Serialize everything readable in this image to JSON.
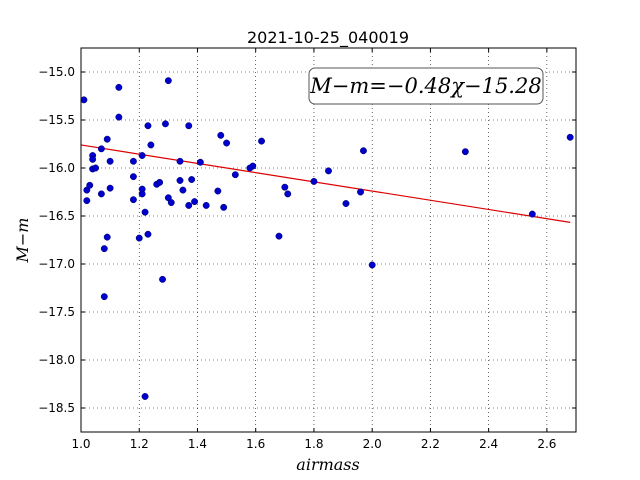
{
  "chart_data": {
    "type": "scatter",
    "title": "2021-10-25_040019",
    "xlabel": "airmass",
    "ylabel": "M−m",
    "xlim": [
      1.0,
      2.7
    ],
    "ylim": [
      -18.75,
      -14.75
    ],
    "x_ticks": [
      1.0,
      1.2,
      1.4,
      1.6,
      1.8,
      2.0,
      2.2,
      2.4,
      2.6
    ],
    "x_tick_labels": [
      "1.0",
      "1.2",
      "1.4",
      "1.6",
      "1.8",
      "2.0",
      "2.2",
      "2.4",
      "2.6"
    ],
    "y_ticks": [
      -15.0,
      -15.5,
      -16.0,
      -16.5,
      -17.0,
      -17.5,
      -18.0,
      -18.5
    ],
    "y_tick_labels": [
      "−15.0",
      "−15.5",
      "−16.0",
      "−16.5",
      "−17.0",
      "−17.5",
      "−18.0",
      "−18.5"
    ],
    "grid": true,
    "marker_color": "#0000cc",
    "fit_color": "#dd0000",
    "annotation": "M−m=−0.48χ−15.28",
    "fit": {
      "slope": -0.48,
      "intercept": -15.28,
      "x_range": [
        1.0,
        2.68
      ]
    },
    "points": [
      [
        1.01,
        -15.29
      ],
      [
        1.02,
        -16.34
      ],
      [
        1.02,
        -16.23
      ],
      [
        1.03,
        -16.18
      ],
      [
        1.04,
        -15.87
      ],
      [
        1.04,
        -15.91
      ],
      [
        1.04,
        -16.01
      ],
      [
        1.05,
        -16.0
      ],
      [
        1.07,
        -15.8
      ],
      [
        1.07,
        -16.27
      ],
      [
        1.08,
        -16.84
      ],
      [
        1.09,
        -15.7
      ],
      [
        1.09,
        -16.72
      ],
      [
        1.1,
        -16.21
      ],
      [
        1.1,
        -15.93
      ],
      [
        1.08,
        -17.34
      ],
      [
        1.13,
        -15.16
      ],
      [
        1.13,
        -15.47
      ],
      [
        1.18,
        -15.93
      ],
      [
        1.18,
        -16.09
      ],
      [
        1.18,
        -16.33
      ],
      [
        1.2,
        -16.73
      ],
      [
        1.21,
        -16.22
      ],
      [
        1.21,
        -16.27
      ],
      [
        1.21,
        -15.87
      ],
      [
        1.22,
        -16.46
      ],
      [
        1.23,
        -15.56
      ],
      [
        1.23,
        -16.69
      ],
      [
        1.24,
        -15.76
      ],
      [
        1.22,
        -18.38
      ],
      [
        1.26,
        -16.17
      ],
      [
        1.27,
        -16.15
      ],
      [
        1.28,
        -17.16
      ],
      [
        1.29,
        -15.54
      ],
      [
        1.3,
        -15.09
      ],
      [
        1.3,
        -16.31
      ],
      [
        1.31,
        -16.36
      ],
      [
        1.34,
        -15.93
      ],
      [
        1.34,
        -16.13
      ],
      [
        1.35,
        -16.23
      ],
      [
        1.37,
        -15.56
      ],
      [
        1.37,
        -16.39
      ],
      [
        1.38,
        -16.12
      ],
      [
        1.39,
        -16.35
      ],
      [
        1.41,
        -15.94
      ],
      [
        1.43,
        -16.39
      ],
      [
        1.47,
        -16.24
      ],
      [
        1.48,
        -15.66
      ],
      [
        1.49,
        -16.41
      ],
      [
        1.5,
        -15.74
      ],
      [
        1.53,
        -16.07
      ],
      [
        1.58,
        -16.0
      ],
      [
        1.59,
        -15.98
      ],
      [
        1.62,
        -15.72
      ],
      [
        1.68,
        -16.71
      ],
      [
        1.7,
        -16.2
      ],
      [
        1.71,
        -16.27
      ],
      [
        1.8,
        -16.14
      ],
      [
        1.85,
        -16.03
      ],
      [
        1.91,
        -16.37
      ],
      [
        1.96,
        -16.25
      ],
      [
        1.97,
        -15.82
      ],
      [
        2.0,
        -17.01
      ],
      [
        2.32,
        -15.83
      ],
      [
        2.55,
        -16.48
      ],
      [
        2.68,
        -15.68
      ]
    ]
  }
}
